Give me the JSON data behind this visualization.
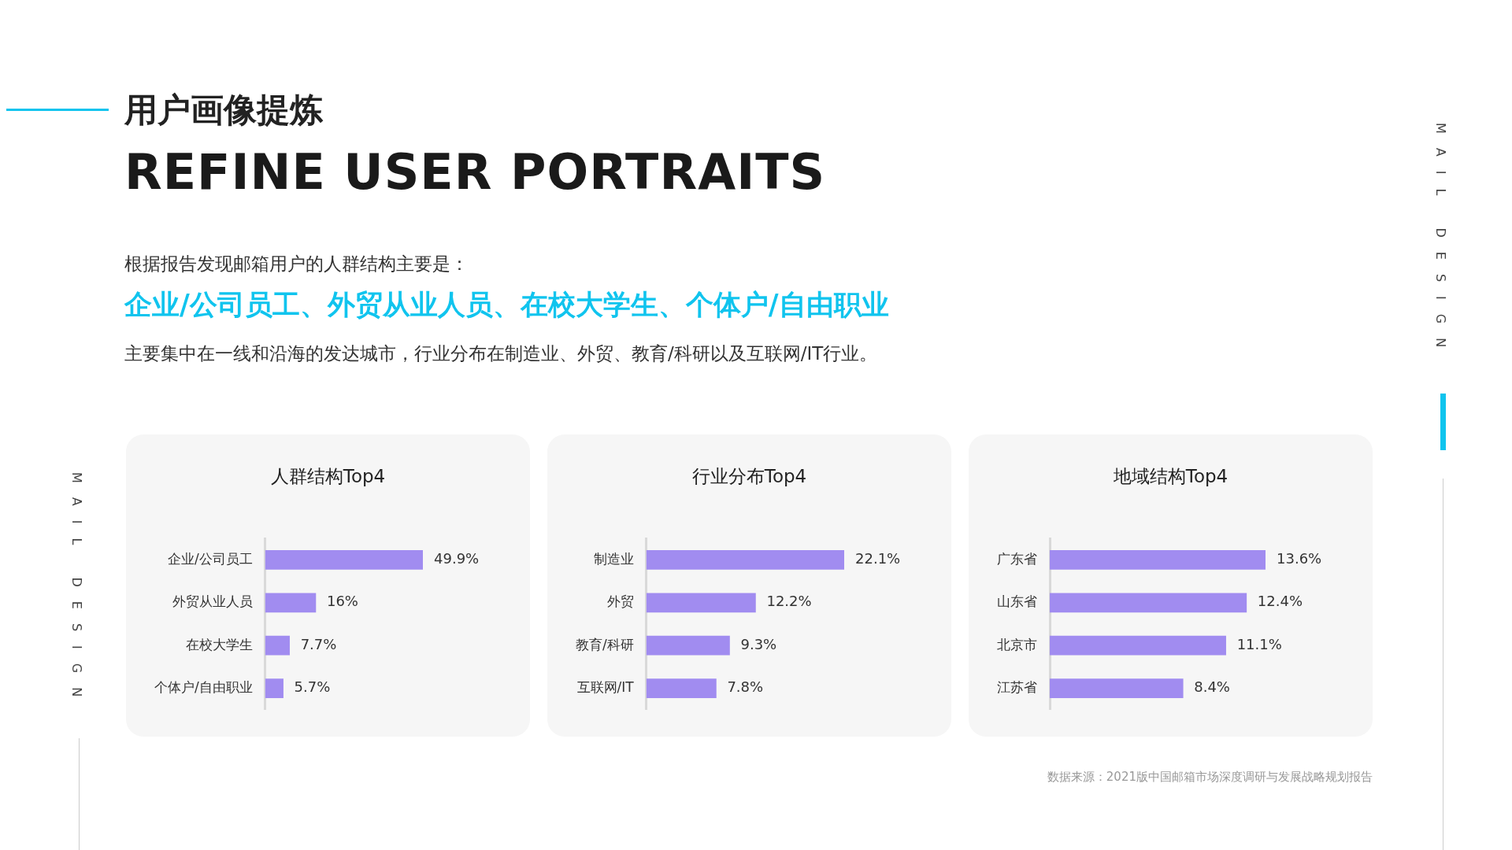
{
  "chart_data": [
    {
      "type": "other",
      "title": "用户画像提炼",
      "subtitle": "REFINE USER PORTRAITS",
      "annotations": [
        "根据报告发现邮箱用户的人群结构主要是：",
        "企业/公司员工、外贸从业人员、在校大学生、个体户/自由职业",
        "主要集中在一线和沿海的发达城市，行业分布在制造业、外贸、教育/科研以及互联网/IT行业。",
        "数据来源：2021版中国邮箱市场深度调研与发展战略规划报告",
        "MAIL DESIGN",
        "MAIL DESIGN"
      ]
    },
    {
      "type": "bar",
      "orientation": "horizontal",
      "title": "人群结构Top4",
      "categories": [
        "企业/公司员工",
        "外贸从业人员",
        "在校大学生",
        "个体户/自由职业"
      ],
      "values": [
        49.9,
        16,
        7.7,
        5.7
      ],
      "value_labels": [
        "49.9%",
        "16%",
        "7.7%",
        "5.7%"
      ],
      "color": "#a18cf0",
      "tick_labels": "y"
    },
    {
      "type": "bar",
      "orientation": "horizontal",
      "title": "行业分布Top4",
      "categories": [
        "制造业",
        "外贸",
        "教育/科研",
        "互联网/IT"
      ],
      "values": [
        22.1,
        12.2,
        9.3,
        7.8
      ],
      "value_labels": [
        "22.1%",
        "12.2%",
        "9.3%",
        "7.8%"
      ],
      "color": "#a18cf0",
      "tick_labels": "y"
    },
    {
      "type": "bar",
      "orientation": "horizontal",
      "title": "地域结构Top4",
      "categories": [
        "广东省",
        "山东省",
        "北京市",
        "江苏省"
      ],
      "values": [
        13.6,
        12.4,
        11.1,
        8.4
      ],
      "value_labels": [
        "13.6%",
        "12.4%",
        "11.1%",
        "8.4%"
      ],
      "color": "#a18cf0",
      "tick_labels": "y"
    }
  ]
}
